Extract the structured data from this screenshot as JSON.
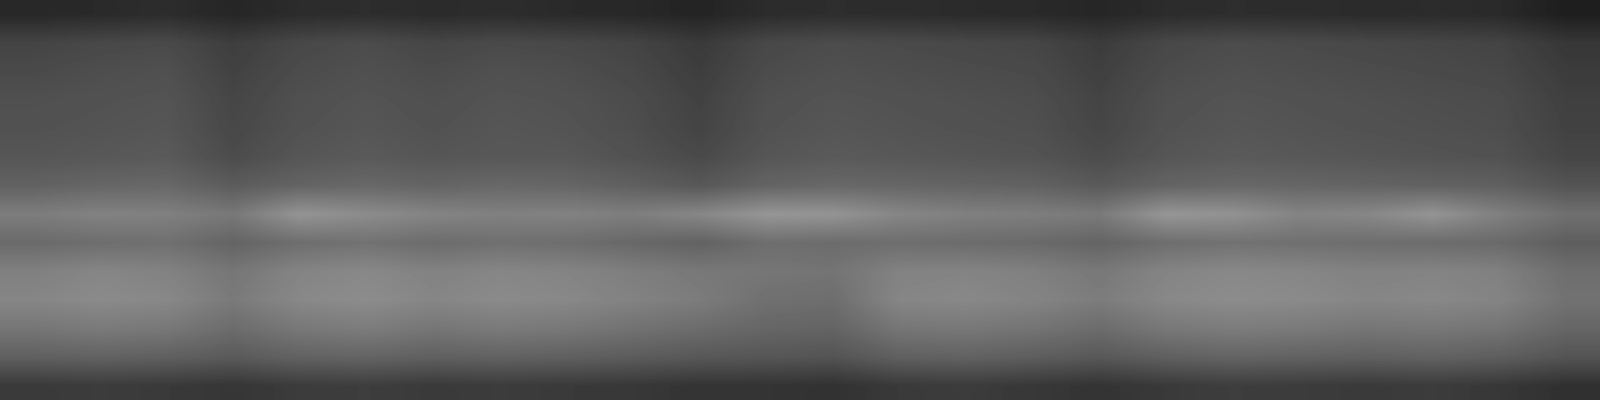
{
  "chart_data": {
    "type": "heatmap",
    "tick_labels": false,
    "color": "gray",
    "clim": [
      0,
      255
    ],
    "cells": [
      [
        40,
        42,
        45,
        38,
        44,
        46,
        43,
        45,
        42,
        40,
        36,
        44,
        46,
        45,
        43,
        42,
        38,
        44,
        46,
        45,
        43,
        44,
        42,
        30
      ],
      [
        68,
        72,
        74,
        62,
        72,
        76,
        70,
        74,
        72,
        68,
        58,
        72,
        76,
        74,
        72,
        70,
        60,
        72,
        76,
        74,
        72,
        70,
        68,
        55
      ],
      [
        74,
        78,
        80,
        66,
        76,
        80,
        76,
        80,
        78,
        72,
        62,
        76,
        80,
        78,
        76,
        74,
        64,
        76,
        80,
        78,
        76,
        74,
        72,
        60
      ],
      [
        80,
        82,
        84,
        70,
        80,
        84,
        80,
        84,
        82,
        76,
        66,
        80,
        84,
        82,
        80,
        78,
        68,
        80,
        84,
        82,
        80,
        78,
        76,
        64
      ],
      [
        82,
        84,
        86,
        72,
        82,
        86,
        82,
        86,
        84,
        78,
        68,
        82,
        86,
        84,
        82,
        80,
        70,
        82,
        86,
        84,
        82,
        80,
        78,
        66
      ],
      [
        86,
        88,
        90,
        76,
        86,
        90,
        86,
        88,
        88,
        82,
        74,
        86,
        90,
        88,
        86,
        84,
        76,
        86,
        90,
        88,
        86,
        84,
        82,
        70
      ],
      [
        98,
        102,
        104,
        92,
        100,
        104,
        100,
        104,
        102,
        96,
        88,
        100,
        104,
        102,
        100,
        98,
        90,
        100,
        104,
        102,
        100,
        98,
        96,
        84
      ],
      [
        125,
        130,
        128,
        120,
        148,
        140,
        132,
        128,
        130,
        126,
        135,
        150,
        148,
        134,
        128,
        126,
        122,
        150,
        146,
        132,
        135,
        148,
        128,
        112
      ],
      [
        106,
        110,
        112,
        100,
        110,
        114,
        108,
        112,
        110,
        104,
        98,
        110,
        108,
        110,
        108,
        106,
        100,
        110,
        114,
        112,
        110,
        108,
        106,
        94
      ],
      [
        128,
        134,
        130,
        118,
        132,
        136,
        130,
        134,
        132,
        126,
        120,
        118,
        116,
        130,
        132,
        128,
        120,
        132,
        136,
        134,
        130,
        132,
        128,
        110
      ],
      [
        134,
        138,
        136,
        122,
        136,
        140,
        134,
        138,
        136,
        130,
        124,
        112,
        110,
        134,
        136,
        132,
        124,
        136,
        140,
        138,
        134,
        136,
        132,
        114
      ],
      [
        118,
        122,
        120,
        108,
        120,
        124,
        118,
        122,
        120,
        114,
        108,
        102,
        100,
        118,
        120,
        116,
        108,
        120,
        124,
        122,
        118,
        120,
        116,
        102
      ],
      [
        96,
        98,
        96,
        90,
        98,
        100,
        96,
        98,
        96,
        92,
        88,
        86,
        84,
        96,
        98,
        94,
        88,
        96,
        100,
        98,
        96,
        98,
        94,
        84
      ],
      [
        58,
        60,
        58,
        54,
        60,
        62,
        58,
        60,
        58,
        56,
        52,
        52,
        50,
        58,
        60,
        56,
        52,
        58,
        62,
        60,
        58,
        60,
        56,
        48
      ]
    ]
  }
}
